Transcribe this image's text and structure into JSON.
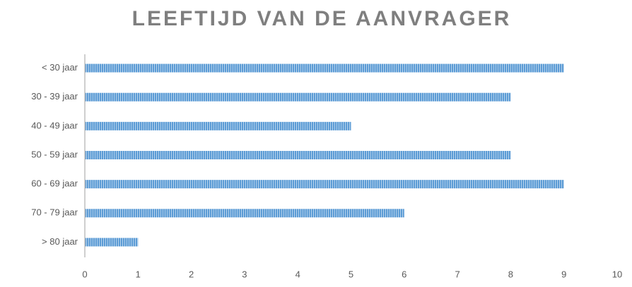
{
  "chart_data": {
    "type": "bar",
    "orientation": "horizontal",
    "title": "LEEFTIJD VAN DE AANVRAGER",
    "categories": [
      "< 30 jaar",
      "30 - 39 jaar",
      "40 - 49 jaar",
      "50 - 59 jaar",
      "60 - 69 jaar",
      "70 - 79 jaar",
      "> 80 jaar"
    ],
    "values": [
      9,
      8,
      5,
      8,
      9,
      6,
      1
    ],
    "color": "#5b9bd5",
    "xlim": [
      0,
      10
    ],
    "xticks": [
      0,
      1,
      2,
      3,
      4,
      5,
      6,
      7,
      8,
      9,
      10
    ],
    "grid": false
  }
}
